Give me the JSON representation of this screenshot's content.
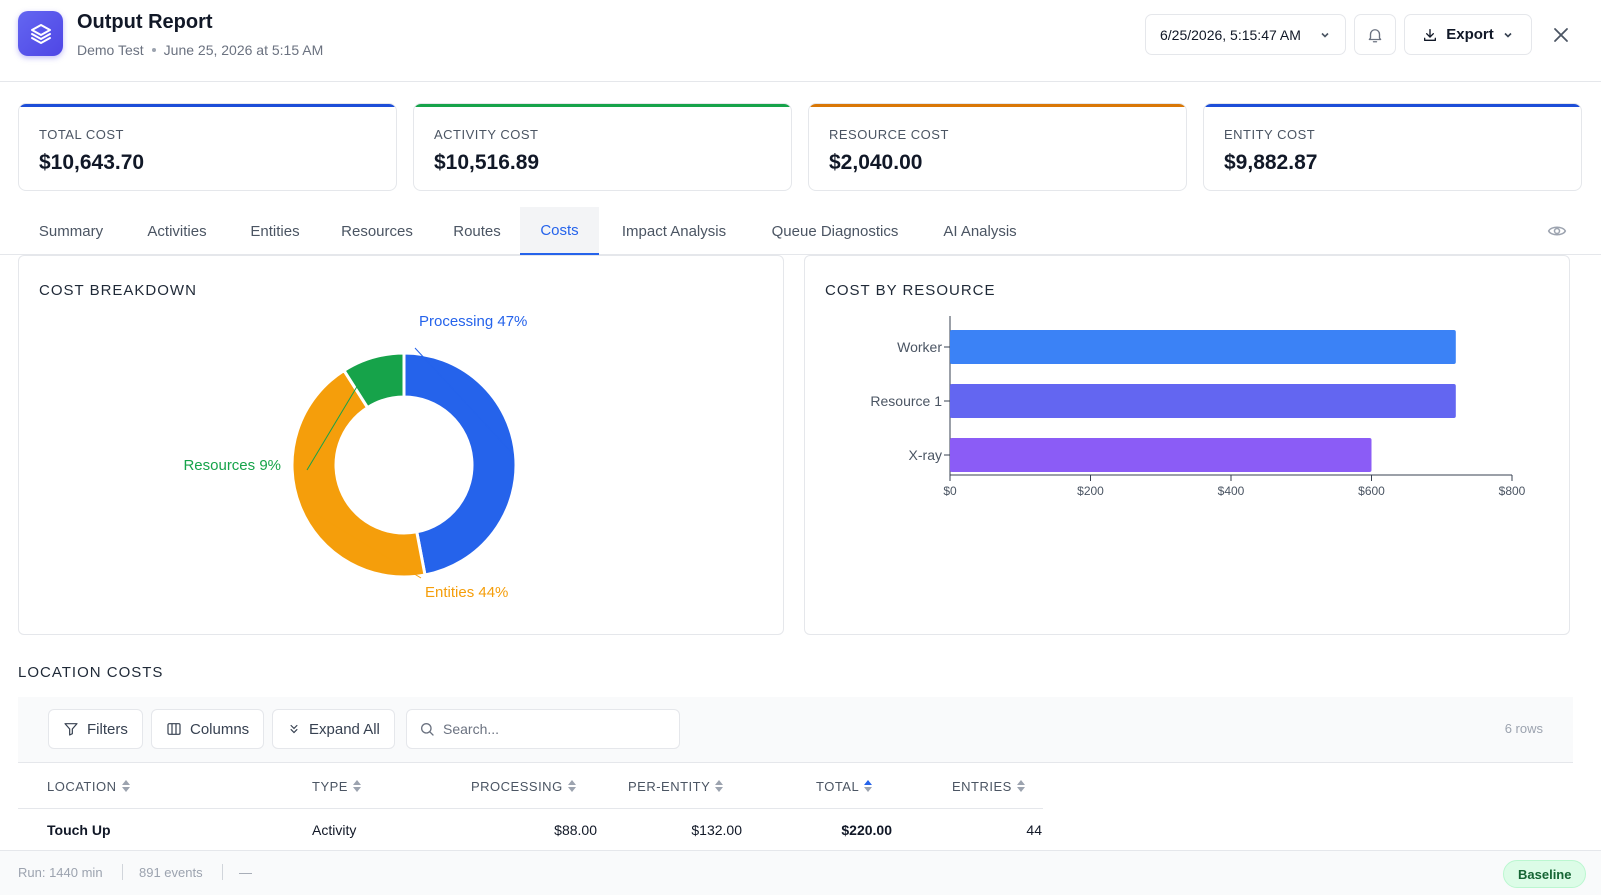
{
  "header": {
    "title": "Output Report",
    "project": "Demo Test",
    "run_date": "June 25, 2026 at 5:15 AM",
    "date_select": "6/25/2026, 5:15:47 AM",
    "export_label": "Export",
    "logo_icon": "layers-icon"
  },
  "kpis": [
    {
      "label": "TOTAL COST",
      "value": "$10,643.70",
      "color": "#1d4ed8"
    },
    {
      "label": "ACTIVITY COST",
      "value": "$10,516.89",
      "color": "#16a34a"
    },
    {
      "label": "RESOURCE COST",
      "value": "$2,040.00",
      "color": "#d97706"
    },
    {
      "label": "ENTITY COST",
      "value": "$9,882.87",
      "color": "#1d4ed8"
    }
  ],
  "tabs": [
    {
      "label": "Summary"
    },
    {
      "label": "Activities"
    },
    {
      "label": "Entities"
    },
    {
      "label": "Resources"
    },
    {
      "label": "Routes"
    },
    {
      "label": "Costs",
      "active": true
    },
    {
      "label": "Impact Analysis"
    },
    {
      "label": "Queue Diagnostics"
    },
    {
      "label": "AI Analysis"
    }
  ],
  "chart_data": [
    {
      "type": "pie",
      "title": "COST BREAKDOWN",
      "donut": true,
      "slices": [
        {
          "label": "Processing",
          "value": 47,
          "display": "Processing 47%",
          "color": "#2563eb"
        },
        {
          "label": "Entities",
          "value": 44,
          "display": "Entities 44%",
          "color": "#f59e0b"
        },
        {
          "label": "Resources",
          "value": 9,
          "display": "Resources 9%",
          "color": "#16a34a"
        }
      ]
    },
    {
      "type": "bar",
      "orientation": "horizontal",
      "title": "COST BY RESOURCE",
      "categories": [
        "Worker",
        "Resource 1",
        "X-ray"
      ],
      "values": [
        720,
        720,
        600
      ],
      "colors": [
        "#3b82f6",
        "#6366f1",
        "#8b5cf6"
      ],
      "xlim": [
        0,
        800
      ],
      "xticks": [
        "$0",
        "$200",
        "$400",
        "$600",
        "$800"
      ]
    }
  ],
  "location_costs": {
    "title": "LOCATION COSTS",
    "filters_label": "Filters",
    "columns_label": "Columns",
    "expand_label": "Expand All",
    "search_placeholder": "Search...",
    "row_count": "6 rows",
    "headers": [
      "LOCATION",
      "TYPE",
      "PROCESSING",
      "PER-ENTITY",
      "TOTAL",
      "ENTRIES"
    ],
    "rows": [
      {
        "location": "Touch Up",
        "type": "Activity",
        "processing": "$88.00",
        "per_entity": "$132.00",
        "total": "$220.00",
        "entries": "44"
      }
    ]
  },
  "footer": {
    "run": "Run: 1440 min",
    "events": "891 events",
    "dash": "—",
    "badge": "Baseline"
  }
}
